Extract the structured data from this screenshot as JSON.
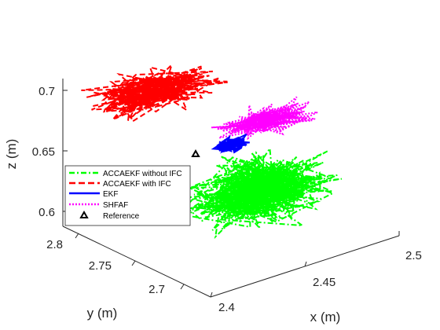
{
  "chart_data": {
    "type": "scatter",
    "projection": "3d",
    "xlabel": "x (m)",
    "ylabel": "y (m)",
    "zlabel": "z (m)",
    "x_ticks": [
      "2.4",
      "2.45",
      "2.5"
    ],
    "y_ticks": [
      "2.8",
      "2.75",
      "2.7"
    ],
    "z_ticks": [
      "0.7",
      "0.65",
      "0.6"
    ],
    "xlim": [
      2.4,
      2.5
    ],
    "ylim": [
      2.68,
      2.82
    ],
    "zlim": [
      0.59,
      0.71
    ],
    "grid": false,
    "legend_position": "lower-left",
    "series": [
      {
        "name": "ACCAEKF without IFC",
        "color": "#00ff00",
        "style": "dash-dot",
        "center": {
          "x": 2.455,
          "y": 2.73,
          "z": 0.628
        },
        "spread": {
          "x": 0.04,
          "y": 0.04,
          "z": 0.03
        }
      },
      {
        "name": "ACCAEKF with IFC",
        "color": "#ff0000",
        "style": "dashed",
        "center": {
          "x": 2.43,
          "y": 2.79,
          "z": 0.697
        },
        "spread": {
          "x": 0.04,
          "y": 0.03,
          "z": 0.012
        }
      },
      {
        "name": "EKF",
        "color": "#0000ff",
        "style": "solid",
        "center": {
          "x": 2.45,
          "y": 2.75,
          "z": 0.66
        },
        "spread": {
          "x": 0.012,
          "y": 0.008,
          "z": 0.007
        }
      },
      {
        "name": "SHFAF",
        "color": "#ff00ff",
        "style": "dotted",
        "center": {
          "x": 2.47,
          "y": 2.75,
          "z": 0.67
        },
        "spread": {
          "x": 0.03,
          "y": 0.02,
          "z": 0.009
        }
      },
      {
        "name": "Reference",
        "color": "#000000",
        "style": "marker",
        "points": [
          {
            "x": 2.41,
            "y": 2.78,
            "z": 0.65
          }
        ]
      }
    ]
  }
}
